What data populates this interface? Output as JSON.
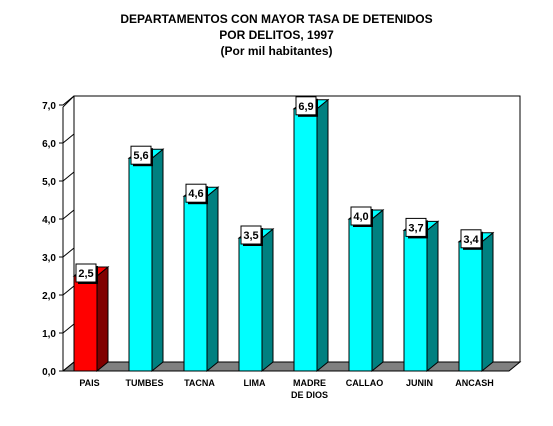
{
  "chart_data": {
    "type": "bar",
    "title": "DEPARTAMENTOS CON MAYOR TASA DE DETENIDOS",
    "subtitle": "POR DELITOS, 1997",
    "unit_note": "(Por mil habitantes)",
    "categories": [
      "PAIS",
      "TUMBES",
      "TACNA",
      "LIMA",
      "MADRE DE DIOS",
      "CALLAO",
      "JUNIN",
      "ANCASH"
    ],
    "category_lines": [
      [
        "PAIS"
      ],
      [
        "TUMBES"
      ],
      [
        "TACNA"
      ],
      [
        "LIMA"
      ],
      [
        "MADRE",
        "DE DIOS"
      ],
      [
        "CALLAO"
      ],
      [
        "JUNIN"
      ],
      [
        "ANCASH"
      ]
    ],
    "values": [
      2.5,
      5.6,
      4.6,
      3.5,
      6.9,
      4.0,
      3.7,
      3.4
    ],
    "value_labels": [
      "2,5",
      "5,6",
      "4,6",
      "3,5",
      "6,9",
      "4,0",
      "3,7",
      "3,4"
    ],
    "ylim": [
      0,
      7
    ],
    "yticks": [
      0,
      1,
      2,
      3,
      4,
      5,
      6,
      7
    ],
    "ytick_labels": [
      "0,0",
      "1,0",
      "2,0",
      "3,0",
      "4,0",
      "5,0",
      "6,0",
      "7,0"
    ],
    "xlabel": "",
    "ylabel": "",
    "grid": false,
    "style": "3d-bar",
    "highlight_category": "PAIS",
    "colors": {
      "highlight_front": "#ff0000",
      "highlight_side": "#800000",
      "bar_front": "#00ffff",
      "bar_side": "#008080",
      "floor": "#808080",
      "label_box": "#ffffff",
      "axis": "#000000"
    }
  }
}
